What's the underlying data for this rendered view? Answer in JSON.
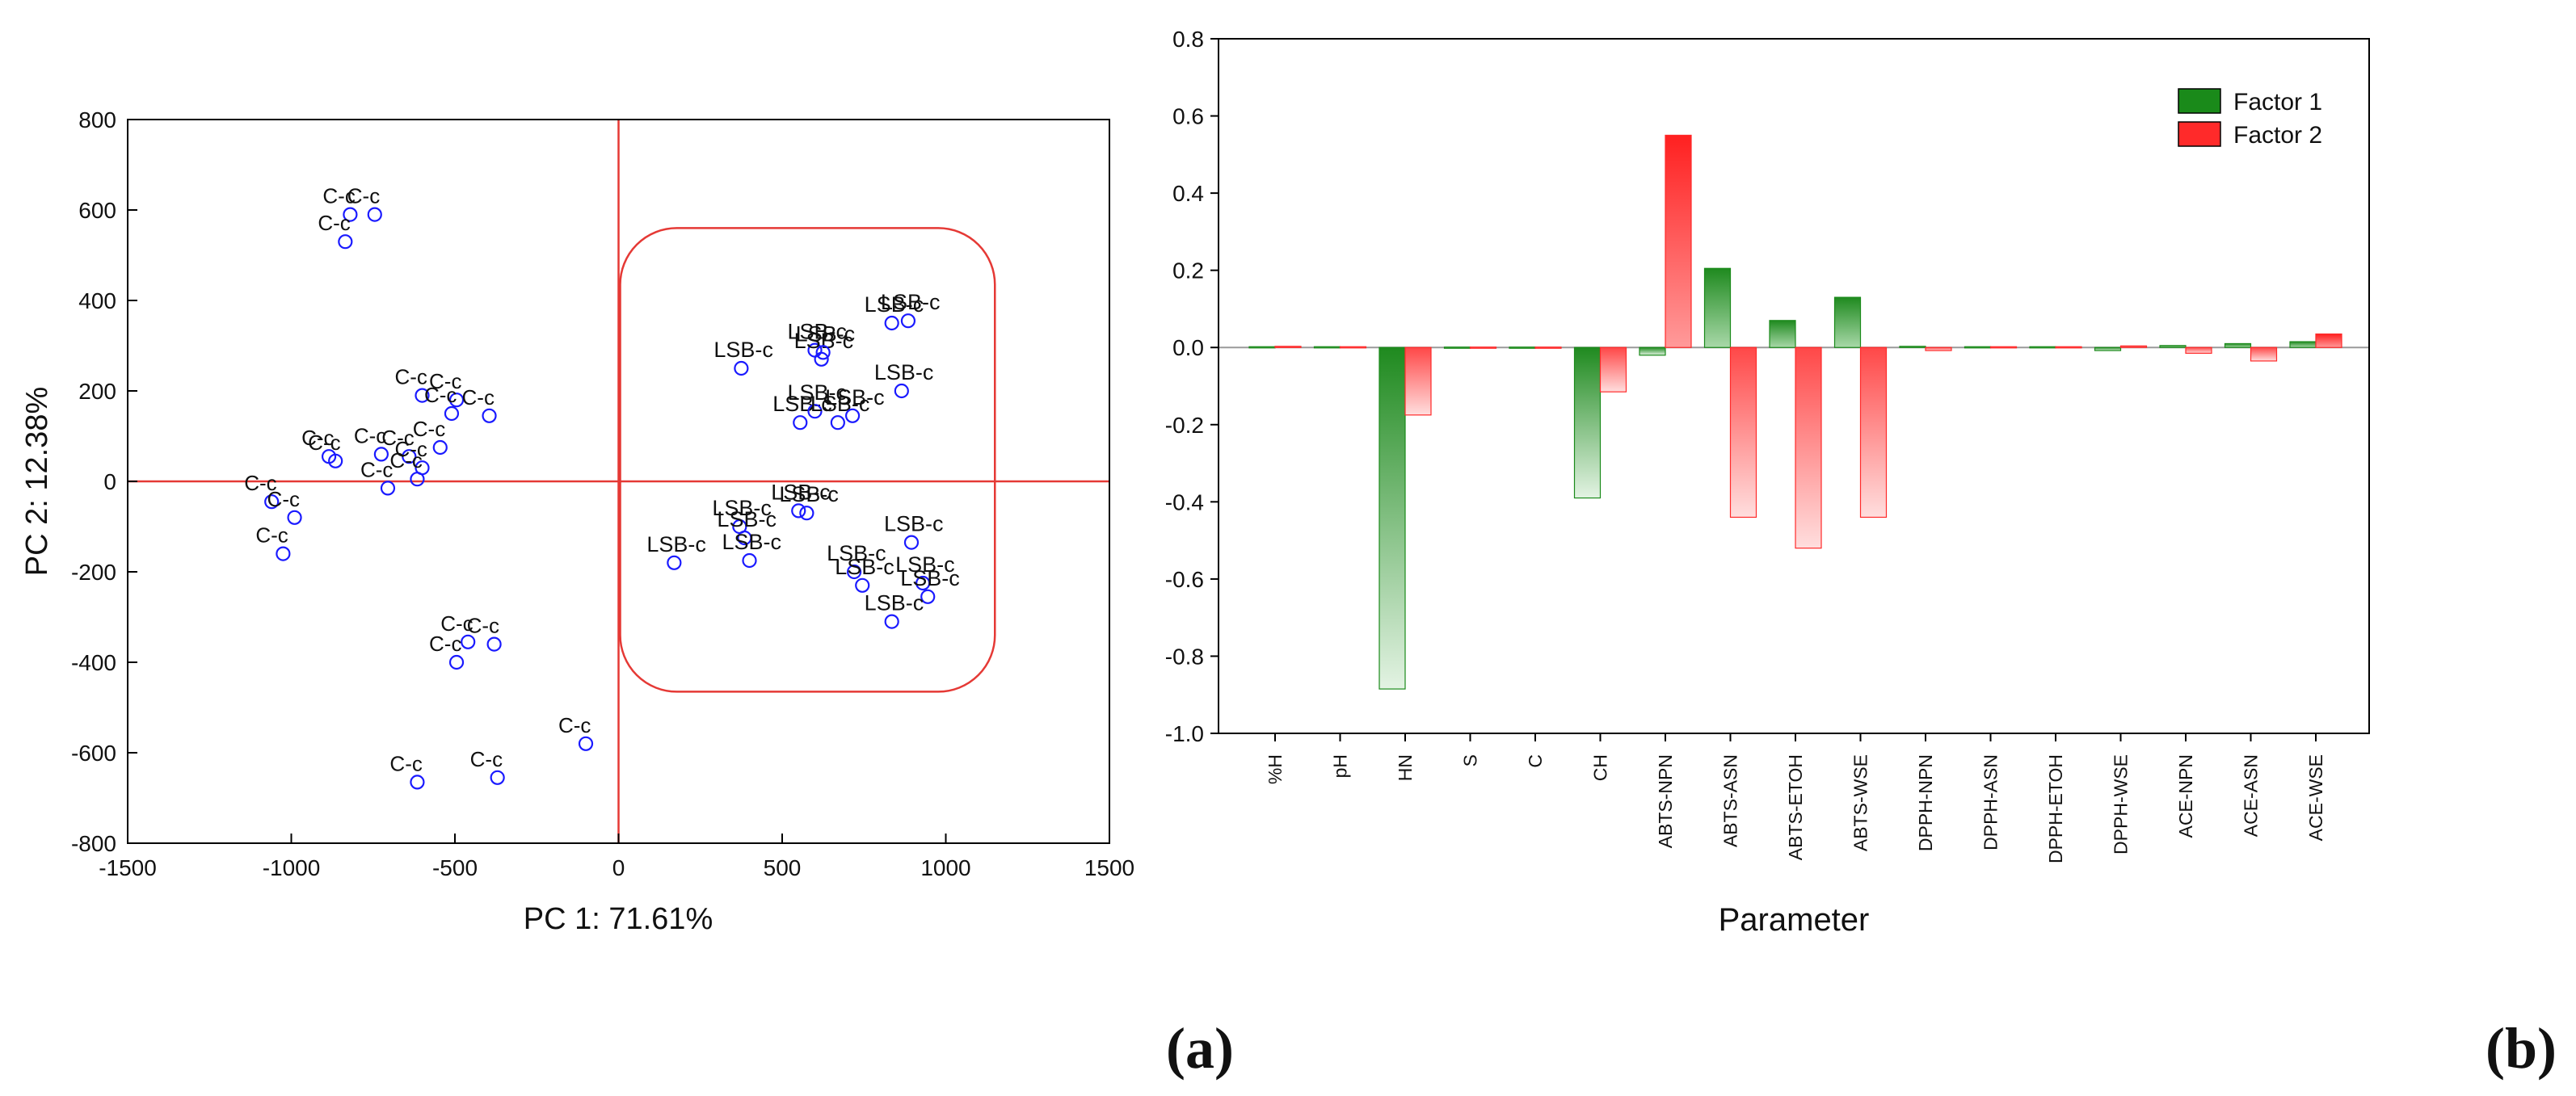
{
  "panel_labels": [
    "(a)",
    "(b)"
  ],
  "chart_data": [
    {
      "type": "scatter",
      "xlabel": "PC 1: 71.61%",
      "ylabel": "PC 2: 12.38%",
      "xlim": [
        -1500,
        1500
      ],
      "ylim": [
        -800,
        800
      ],
      "xticks": [
        -1500,
        -1000,
        -500,
        0,
        500,
        1000,
        1500
      ],
      "yticks": [
        -800,
        -600,
        -400,
        -200,
        0,
        200,
        400,
        600,
        800
      ],
      "grid": false,
      "reference_lines": [
        {
          "axis": "x",
          "value": 0,
          "color": "#e53935"
        },
        {
          "axis": "y",
          "value": 0,
          "color": "#e53935"
        }
      ],
      "highlight_region": {
        "x": [
          5,
          1150
        ],
        "y": [
          -465,
          560
        ],
        "color": "#e53935"
      },
      "marker_color": "#1a1aff",
      "series": [
        {
          "name": "C-c",
          "points": [
            {
              "x": -820,
              "y": 590,
              "label": "C-c"
            },
            {
              "x": -745,
              "y": 590,
              "label": "C-c"
            },
            {
              "x": -835,
              "y": 530,
              "label": "C-c"
            },
            {
              "x": -600,
              "y": 190,
              "label": "C-c"
            },
            {
              "x": -495,
              "y": 180,
              "label": "C-c"
            },
            {
              "x": -510,
              "y": 150,
              "label": "C-c"
            },
            {
              "x": -395,
              "y": 145,
              "label": "C-c"
            },
            {
              "x": -885,
              "y": 55,
              "label": "C-c"
            },
            {
              "x": -865,
              "y": 45,
              "label": "C-c"
            },
            {
              "x": -725,
              "y": 60,
              "label": "C-c"
            },
            {
              "x": -640,
              "y": 55,
              "label": "C-c"
            },
            {
              "x": -545,
              "y": 75,
              "label": "C-c"
            },
            {
              "x": -600,
              "y": 30,
              "label": "C-c"
            },
            {
              "x": -615,
              "y": 5,
              "label": "C-c"
            },
            {
              "x": -705,
              "y": -15,
              "label": "C-c"
            },
            {
              "x": -1060,
              "y": -45,
              "label": "C-c"
            },
            {
              "x": -990,
              "y": -80,
              "label": "C-c"
            },
            {
              "x": -1025,
              "y": -160,
              "label": "C-c"
            },
            {
              "x": -460,
              "y": -355,
              "label": "C-c"
            },
            {
              "x": -380,
              "y": -360,
              "label": "C-c"
            },
            {
              "x": -495,
              "y": -400,
              "label": "C-c"
            },
            {
              "x": -100,
              "y": -580,
              "label": "C-c"
            },
            {
              "x": -615,
              "y": -665,
              "label": "C-c"
            },
            {
              "x": -370,
              "y": -655,
              "label": "C-c"
            }
          ]
        },
        {
          "name": "LSB-c",
          "points": [
            {
              "x": 835,
              "y": 350,
              "label": "LSB-c"
            },
            {
              "x": 885,
              "y": 355,
              "label": "LSB-c"
            },
            {
              "x": 600,
              "y": 290,
              "label": "LSB-c"
            },
            {
              "x": 620,
              "y": 270,
              "label": "LSB-c"
            },
            {
              "x": 625,
              "y": 285,
              "label": "LSB-c"
            },
            {
              "x": 375,
              "y": 250,
              "label": "LSB-c"
            },
            {
              "x": 865,
              "y": 200,
              "label": "LSB-c"
            },
            {
              "x": 555,
              "y": 130,
              "label": "LSB-c"
            },
            {
              "x": 600,
              "y": 155,
              "label": "LSB-c"
            },
            {
              "x": 670,
              "y": 130,
              "label": "LSB-c"
            },
            {
              "x": 715,
              "y": 145,
              "label": "LSB-c"
            },
            {
              "x": 550,
              "y": -65,
              "label": "LSB-c"
            },
            {
              "x": 575,
              "y": -70,
              "label": "LSB-c"
            },
            {
              "x": 370,
              "y": -100,
              "label": "LSB-c"
            },
            {
              "x": 385,
              "y": -125,
              "label": "LSB-c"
            },
            {
              "x": 400,
              "y": -175,
              "label": "LSB-c"
            },
            {
              "x": 170,
              "y": -180,
              "label": "LSB-c"
            },
            {
              "x": 895,
              "y": -135,
              "label": "LSB-c"
            },
            {
              "x": 720,
              "y": -200,
              "label": "LSB-c"
            },
            {
              "x": 745,
              "y": -230,
              "label": "LSB-c"
            },
            {
              "x": 930,
              "y": -225,
              "label": "LSB-c"
            },
            {
              "x": 945,
              "y": -255,
              "label": "LSB-c"
            },
            {
              "x": 835,
              "y": -310,
              "label": "LSB-c"
            }
          ]
        }
      ]
    },
    {
      "type": "bar",
      "xlabel": "Parameter",
      "ylabel": "",
      "ylim": [
        -1.0,
        0.8
      ],
      "yticks": [
        -1.0,
        -0.8,
        -0.6,
        -0.4,
        -0.2,
        0.0,
        0.2,
        0.4,
        0.6,
        0.8
      ],
      "ytick_labels": [
        "-1.0",
        "-0.8",
        "-0.6",
        "-0.4",
        "-0.2",
        "0.0",
        "0.2",
        "0.4",
        "0.6",
        "0.8"
      ],
      "legend_position": "top-right",
      "categories": [
        "%H",
        "pH",
        "HN",
        "S",
        "C",
        "CH",
        "ABTS-NPN",
        "ABTS-ASN",
        "ABTS-ETOH",
        "ABTS-WSE",
        "DPPH-NPN",
        "DPPH-ASN",
        "DPPH-ETOH",
        "DPPH-WSE",
        "ACE-NPN",
        "ACE-ASN",
        "ACE-WSE"
      ],
      "series": [
        {
          "name": "Factor 1",
          "color": "#1a8a1a",
          "values": [
            0.002,
            0.002,
            -0.885,
            0.001,
            0.001,
            -0.39,
            -0.02,
            0.205,
            0.07,
            0.13,
            0.003,
            0.002,
            0.002,
            -0.008,
            0.005,
            0.01,
            0.015
          ]
        },
        {
          "name": "Factor 2",
          "color": "#ff2a2a",
          "values": [
            0.003,
            0.002,
            -0.175,
            0.001,
            0.001,
            -0.115,
            0.55,
            -0.44,
            -0.52,
            -0.44,
            -0.008,
            0.002,
            0.002,
            0.004,
            -0.015,
            -0.035,
            0.035
          ]
        }
      ]
    }
  ]
}
